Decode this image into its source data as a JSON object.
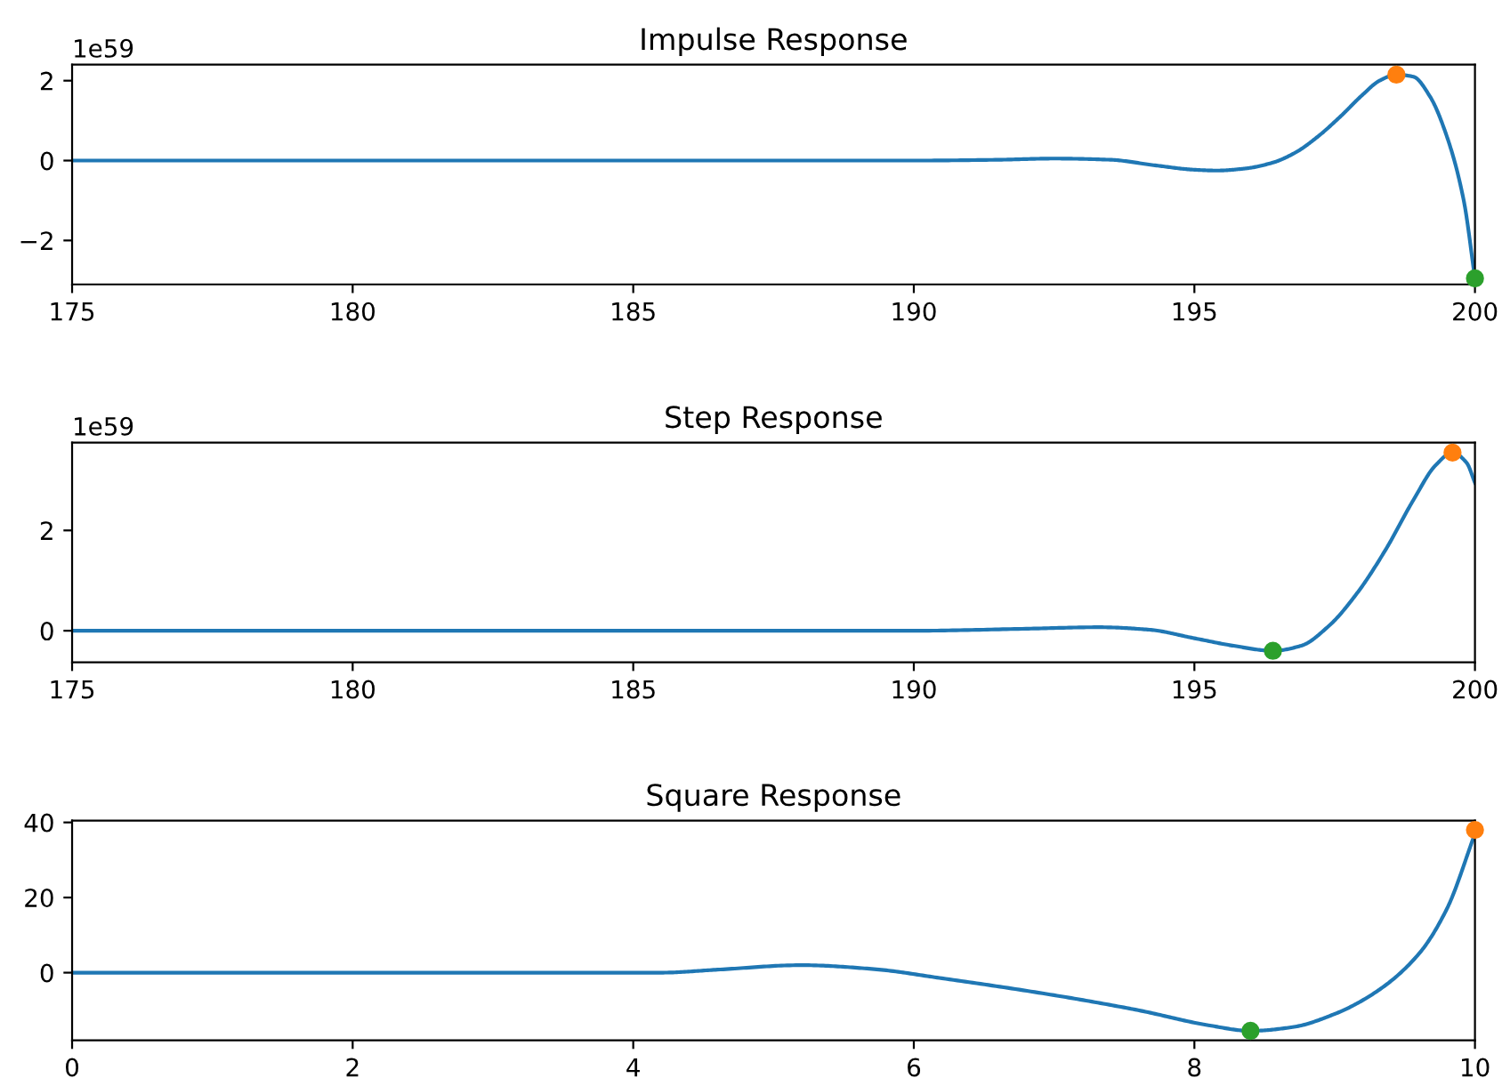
{
  "chart_data": [
    {
      "type": "line",
      "title": "Impulse Response",
      "annotations": [
        "1e59"
      ],
      "xlim": [
        175,
        200
      ],
      "xticks": [
        175,
        180,
        185,
        190,
        195,
        200
      ],
      "ylim": [
        -3.1,
        2.4
      ],
      "yticks": [
        {
          "value": -2,
          "label": "−2"
        },
        0,
        2
      ],
      "series": [
        {
          "type": "line",
          "color": "#1f77b4",
          "x": [
            175,
            180,
            185,
            190,
            191.5,
            192.5,
            193.5,
            194.3,
            195,
            195.4,
            195.9,
            196.4,
            196.8,
            197.2,
            197.6,
            198,
            198.3,
            198.6,
            198.9,
            199.2,
            199.5,
            199.8,
            200
          ],
          "values": [
            0,
            0,
            0,
            0,
            0.02,
            0.05,
            0.02,
            -0.12,
            -0.23,
            -0.25,
            -0.2,
            -0.05,
            0.2,
            0.6,
            1.1,
            1.65,
            2.0,
            2.15,
            2.1,
            1.6,
            0.6,
            -1.0,
            -2.95
          ]
        },
        {
          "type": "scatter",
          "color": "#ff7f0e",
          "x": [
            198.6
          ],
          "values": [
            2.15
          ],
          "marker": "circle"
        },
        {
          "type": "scatter",
          "color": "#2ca02c",
          "x": [
            200
          ],
          "values": [
            -2.95
          ],
          "marker": "circle"
        }
      ]
    },
    {
      "type": "line",
      "title": "Step Response",
      "annotations": [
        "1e59"
      ],
      "xlim": [
        175,
        200
      ],
      "xticks": [
        175,
        180,
        185,
        190,
        195,
        200
      ],
      "ylim": [
        -0.63,
        3.75
      ],
      "yticks": [
        0,
        2
      ],
      "series": [
        {
          "type": "line",
          "color": "#1f77b4",
          "x": [
            175,
            180,
            185,
            190,
            192,
            193.3,
            194.2,
            195,
            195.7,
            196.4,
            196.9,
            197.4,
            197.9,
            198.4,
            198.9,
            199.3,
            199.6,
            199.85,
            200
          ],
          "values": [
            0,
            0,
            0,
            0,
            0.04,
            0.07,
            0.02,
            -0.15,
            -0.3,
            -0.4,
            -0.3,
            0.1,
            0.75,
            1.6,
            2.6,
            3.3,
            3.55,
            3.35,
            2.95
          ]
        },
        {
          "type": "scatter",
          "color": "#ff7f0e",
          "x": [
            199.6
          ],
          "values": [
            3.55
          ],
          "marker": "circle"
        },
        {
          "type": "scatter",
          "color": "#2ca02c",
          "x": [
            196.4
          ],
          "values": [
            -0.4
          ],
          "marker": "circle"
        }
      ]
    },
    {
      "type": "line",
      "title": "Square Response",
      "xlim": [
        0,
        10
      ],
      "xticks": [
        0,
        2,
        4,
        6,
        8,
        10
      ],
      "ylim": [
        -18,
        40.5
      ],
      "yticks": [
        0,
        20,
        40
      ],
      "series": [
        {
          "type": "line",
          "color": "#1f77b4",
          "x": [
            0,
            2,
            4,
            4.2,
            4.6,
            5.2,
            5.7,
            6.2,
            7,
            7.6,
            8.1,
            8.4,
            8.7,
            9,
            9.3,
            9.6,
            9.8,
            10
          ],
          "values": [
            0,
            0,
            0,
            0,
            0.8,
            2,
            1,
            -1.5,
            -6,
            -10,
            -14,
            -15.5,
            -14.5,
            -11,
            -5,
            5,
            17,
            37
          ]
        },
        {
          "type": "scatter",
          "color": "#ff7f0e",
          "x": [
            10
          ],
          "values": [
            38
          ],
          "marker": "circle"
        },
        {
          "type": "scatter",
          "color": "#2ca02c",
          "x": [
            8.4
          ],
          "values": [
            -15.5
          ],
          "marker": "circle"
        }
      ]
    }
  ]
}
